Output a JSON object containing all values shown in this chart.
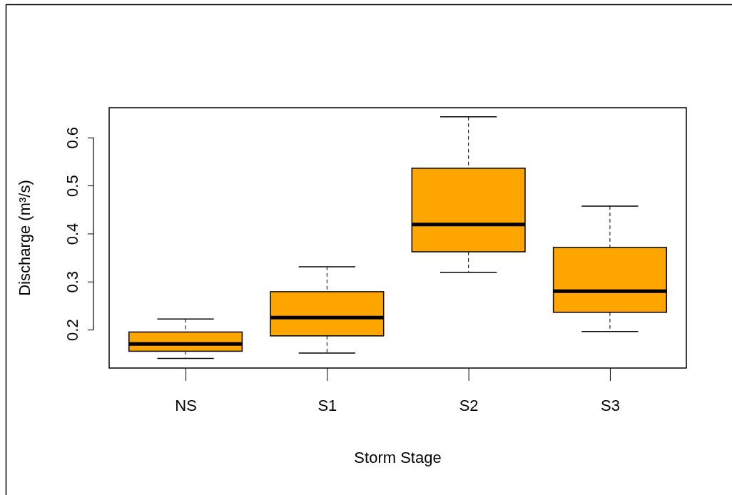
{
  "chart_data": {
    "type": "box",
    "xlabel": "Storm Stage",
    "ylabel": "Discharge (m³/s)",
    "categories": [
      "NS",
      "S1",
      "S2",
      "S3"
    ],
    "color": "#ffa500",
    "boxes": [
      {
        "low": 0.14,
        "q1": 0.155,
        "median": 0.17,
        "q3": 0.195,
        "high": 0.222
      },
      {
        "low": 0.151,
        "q1": 0.187,
        "median": 0.225,
        "q3": 0.279,
        "high": 0.331
      },
      {
        "low": 0.319,
        "q1": 0.362,
        "median": 0.419,
        "q3": 0.536,
        "high": 0.643
      },
      {
        "low": 0.196,
        "q1": 0.236,
        "median": 0.28,
        "q3": 0.371,
        "high": 0.457
      }
    ],
    "ylim": [
      0.12,
      0.662
    ],
    "yticks": [
      0.2,
      0.3,
      0.4,
      0.5,
      0.6
    ],
    "grid": false
  }
}
